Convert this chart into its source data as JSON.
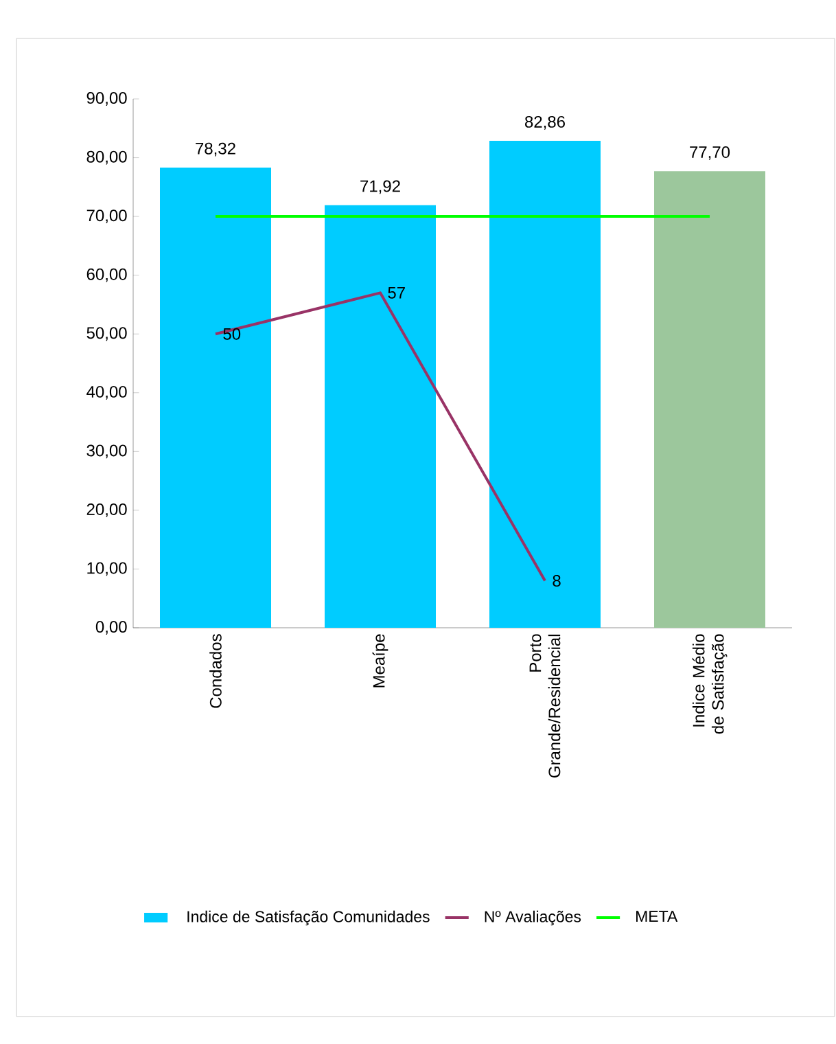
{
  "chart_data": {
    "type": "bar",
    "categories": [
      "Condados",
      "Meaípe",
      "Porto Grande/Residencial",
      "Indice Médio de Satisfação"
    ],
    "series": [
      {
        "name": "Indice de Satisfação Comunidades",
        "color": "#00ccff",
        "colors": [
          "#00ccff",
          "#00ccff",
          "#00ccff",
          "#9cc79c"
        ],
        "values": [
          78.32,
          71.92,
          82.86,
          77.7
        ],
        "value_labels": [
          "78,32",
          "71,92",
          "82,86",
          "77,70"
        ]
      },
      {
        "name": "Nº Avaliações",
        "type": "line",
        "color": "#993366",
        "values": [
          50,
          57,
          8,
          null
        ],
        "value_labels": [
          "50",
          "57",
          "8",
          null
        ]
      },
      {
        "name": "META",
        "type": "line",
        "color": "#00ff00",
        "values": [
          70,
          70,
          70,
          70
        ]
      }
    ],
    "ylim": [
      0,
      90
    ],
    "yticks": [
      {
        "value": 0,
        "label": "0,00"
      },
      {
        "value": 10,
        "label": "10,00"
      },
      {
        "value": 20,
        "label": "20,00"
      },
      {
        "value": 30,
        "label": "30,00"
      },
      {
        "value": 40,
        "label": "40,00"
      },
      {
        "value": 50,
        "label": "50,00"
      },
      {
        "value": 60,
        "label": "60,00"
      },
      {
        "value": 70,
        "label": "70,00"
      },
      {
        "value": 80,
        "label": "80,00"
      },
      {
        "value": 90,
        "label": "90,00"
      }
    ],
    "legend": "bottom",
    "marker": "none"
  }
}
